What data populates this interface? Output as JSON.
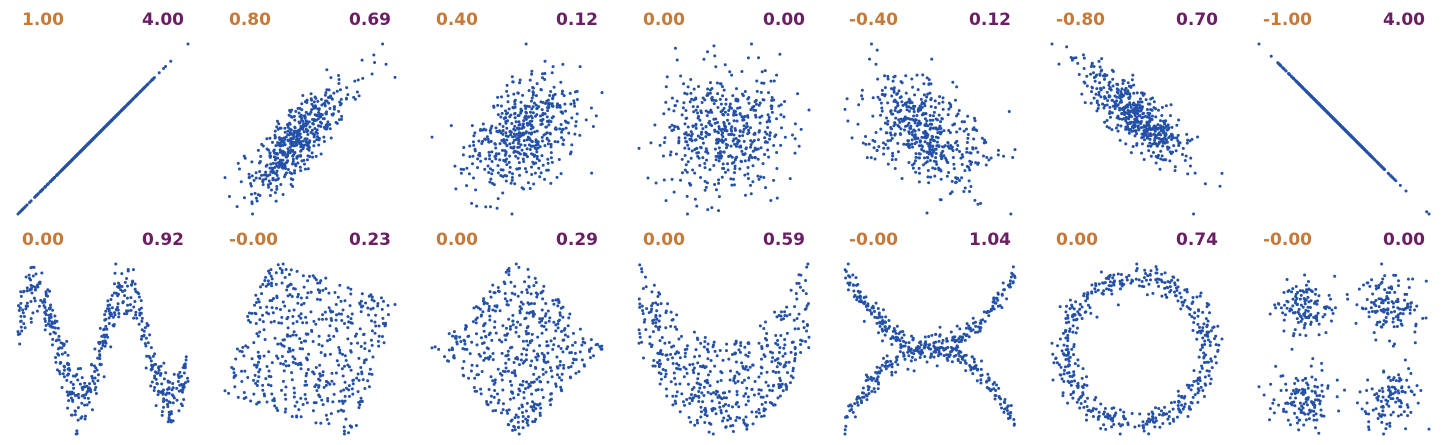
{
  "colors": {
    "point": "#2451a8",
    "left_value": "#c57a3a",
    "right_value": "#6b1f63",
    "background": "#ffffff"
  },
  "chart_data": {
    "type": "scatter",
    "axes_visible": false,
    "grid": false,
    "points_per_panel": 500,
    "panels": [
      {
        "row": 1,
        "col": 1,
        "left_value": "1.00",
        "right_value": "4.00",
        "pattern": "linear",
        "correlation": 1.0
      },
      {
        "row": 1,
        "col": 2,
        "left_value": "0.80",
        "right_value": "0.69",
        "pattern": "linear",
        "correlation": 0.8
      },
      {
        "row": 1,
        "col": 3,
        "left_value": "0.40",
        "right_value": "0.12",
        "pattern": "linear",
        "correlation": 0.4
      },
      {
        "row": 1,
        "col": 4,
        "left_value": "0.00",
        "right_value": "0.00",
        "pattern": "linear",
        "correlation": 0.0
      },
      {
        "row": 1,
        "col": 5,
        "left_value": "-0.40",
        "right_value": "0.12",
        "pattern": "linear",
        "correlation": -0.4
      },
      {
        "row": 1,
        "col": 6,
        "left_value": "-0.80",
        "right_value": "0.70",
        "pattern": "linear",
        "correlation": -0.8
      },
      {
        "row": 1,
        "col": 7,
        "left_value": "-1.00",
        "right_value": "4.00",
        "pattern": "linear",
        "correlation": -1.0
      },
      {
        "row": 2,
        "col": 1,
        "left_value": "0.00",
        "right_value": "0.92",
        "pattern": "sine"
      },
      {
        "row": 2,
        "col": 2,
        "left_value": "-0.00",
        "right_value": "0.23",
        "pattern": "rotated-square"
      },
      {
        "row": 2,
        "col": 3,
        "left_value": "0.00",
        "right_value": "0.29",
        "pattern": "diamond"
      },
      {
        "row": 2,
        "col": 4,
        "left_value": "0.00",
        "right_value": "0.59",
        "pattern": "parabola"
      },
      {
        "row": 2,
        "col": 5,
        "left_value": "-0.00",
        "right_value": "1.04",
        "pattern": "cross"
      },
      {
        "row": 2,
        "col": 6,
        "left_value": "0.00",
        "right_value": "0.74",
        "pattern": "ring"
      },
      {
        "row": 2,
        "col": 7,
        "left_value": "-0.00",
        "right_value": "0.00",
        "pattern": "four-clusters"
      }
    ]
  }
}
